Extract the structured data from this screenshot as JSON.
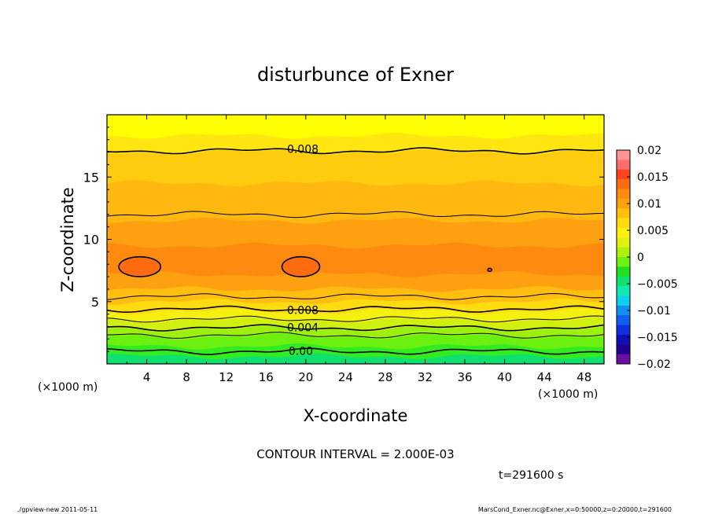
{
  "chart_data": {
    "type": "contour",
    "title": "disturbunce of Exner",
    "xlabel": "X-coordinate",
    "ylabel": "Z-coordinate",
    "x_unit": "(×1000 m)",
    "xlim": [
      0,
      50
    ],
    "ylim": [
      0,
      20
    ],
    "x_ticks": [
      4,
      8,
      12,
      16,
      20,
      24,
      28,
      32,
      36,
      40,
      44,
      48
    ],
    "y_ticks": [
      5,
      10,
      15
    ],
    "colorbar": {
      "min": -0.02,
      "max": 0.02,
      "labels": [
        "0.02",
        "0.015",
        "0.01",
        "0.005",
        "0",
        "−0.005",
        "−0.01",
        "−0.015",
        "−0.02"
      ],
      "colors": [
        "#ff9494",
        "#ff6e6e",
        "#ff4420",
        "#ff6c10",
        "#ff8c10",
        "#ffa010",
        "#ffc010",
        "#ffdc10",
        "#fff010",
        "#e0f010",
        "#b0f010",
        "#70f010",
        "#20e020",
        "#10e070",
        "#10e8b0",
        "#10d0f0",
        "#1090f0",
        "#1060f0",
        "#1030e0",
        "#1010b0",
        "#200090",
        "#6a10a0"
      ]
    },
    "z_bands": [
      {
        "z": 0.0,
        "color": "#10e070"
      },
      {
        "z": 0.6,
        "color": "#30ec20"
      },
      {
        "z": 1.4,
        "color": "#6cf010"
      },
      {
        "z": 2.2,
        "color": "#9cf010"
      },
      {
        "z": 2.8,
        "color": "#d0f010"
      },
      {
        "z": 3.5,
        "color": "#f4f010"
      },
      {
        "z": 4.2,
        "color": "#ffdc10"
      },
      {
        "z": 5.0,
        "color": "#ffbe10"
      },
      {
        "z": 6.0,
        "color": "#ffa010"
      },
      {
        "z": 7.2,
        "color": "#ff8a10"
      },
      {
        "z": 9.5,
        "color": "#ffa010"
      },
      {
        "z": 11.5,
        "color": "#ffb810"
      },
      {
        "z": 14.5,
        "color": "#ffcc10"
      },
      {
        "z": 17.0,
        "color": "#ffe610"
      },
      {
        "z": 18.3,
        "color": "#ffff00"
      }
    ],
    "contour_lines": [
      {
        "z": 1.0,
        "label": "0.00",
        "label_x": 17.8
      },
      {
        "z": 2.3,
        "label": "",
        "label_x": null
      },
      {
        "z": 2.9,
        "label": "0.004",
        "label_x": 18.0
      },
      {
        "z": 3.6,
        "label": "",
        "label_x": null
      },
      {
        "z": 4.4,
        "label": "0.008",
        "label_x": 18.0
      },
      {
        "z": 5.4,
        "label": "",
        "label_x": null
      },
      {
        "z": 12.0,
        "label": "",
        "label_x": null
      },
      {
        "z": 17.1,
        "label": "0.008",
        "label_x": 18.0
      }
    ],
    "closed_contours": [
      {
        "x": 3.3,
        "z": 7.8,
        "rx": 2.1,
        "rz": 0.8
      },
      {
        "x": 19.5,
        "z": 7.8,
        "rx": 1.9,
        "rz": 0.8
      },
      {
        "x": 38.5,
        "z": 7.55,
        "rx": 0.2,
        "rz": 0.12
      }
    ]
  },
  "annotations": {
    "x_unit_left": "(×1000 m)",
    "x_unit_right": "(×1000 m)",
    "contour_interval": "CONTOUR INTERVAL = 2.000E-03",
    "time": "t=291600  s",
    "footer_left": "./gpview-new   2011-05-11",
    "footer_right": "MarsCond_Exner.nc@Exner,x=0:50000,z=0:20000,t=291600"
  }
}
